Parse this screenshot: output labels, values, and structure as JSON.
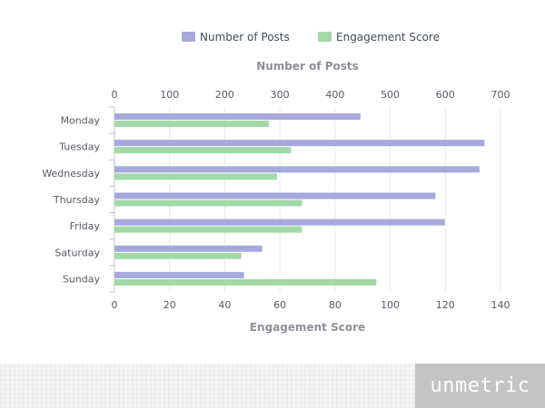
{
  "chart_data": {
    "type": "bar",
    "orientation": "horizontal",
    "categories": [
      "Monday",
      "Tuesday",
      "Wednesday",
      "Thursday",
      "Friday",
      "Saturday",
      "Sunday"
    ],
    "series": [
      {
        "name": "Number of Posts",
        "axis": "top",
        "color": "#a5a9dc",
        "values": [
          446,
          671,
          662,
          582,
          599,
          268,
          235
        ]
      },
      {
        "name": "Engagement Score",
        "axis": "bottom",
        "color": "#a3d9a7",
        "values": [
          56,
          64,
          59,
          68,
          68,
          46,
          95
        ]
      }
    ],
    "top_axis": {
      "title": "Number of Posts",
      "range": [
        0,
        700
      ],
      "ticks": [
        "0",
        "100",
        "200",
        "300",
        "400",
        "500",
        "600",
        "700"
      ]
    },
    "bottom_axis": {
      "title": "Engagement Score",
      "range": [
        0,
        140
      ],
      "ticks": [
        "0",
        "20",
        "40",
        "60",
        "80",
        "100",
        "120",
        "140"
      ]
    },
    "legend_position": "top-center",
    "grid": true
  },
  "footer": {
    "brand": "unmetric"
  }
}
